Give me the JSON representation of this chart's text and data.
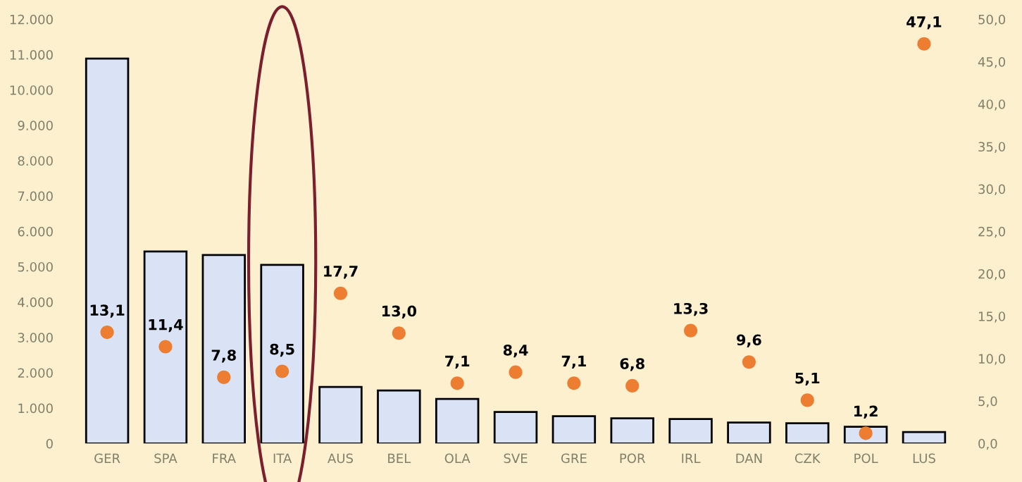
{
  "chart_data": {
    "type": "bar",
    "categories": [
      "GER",
      "SPA",
      "FRA",
      "ITA",
      "AUS",
      "BEL",
      "OLA",
      "SVE",
      "GRE",
      "POR",
      "IRL",
      "DAN",
      "CZK",
      "POL",
      "LUS"
    ],
    "series": [
      {
        "color": "#dae3f5",
        "values": [
          10890,
          5430,
          5330,
          5050,
          1600,
          1500,
          1260,
          890,
          770,
          710,
          690,
          590,
          570,
          470,
          320
        ]
      },
      {
        "type": "scatter",
        "axis": "y2",
        "color": "#ed7d31",
        "values": [
          13.1,
          11.4,
          7.8,
          8.5,
          17.7,
          13.0,
          7.1,
          8.4,
          7.1,
          6.8,
          13.3,
          9.6,
          5.1,
          1.2,
          47.1
        ],
        "value_labels": [
          "13,1",
          "11,4",
          "7,8",
          "8,5",
          "17,7",
          "13,0",
          "7,1",
          "8,4",
          "7,1",
          "6,8",
          "13,3",
          "9,6",
          "5,1",
          "1,2",
          "47,1"
        ]
      }
    ],
    "ylim": [
      0,
      12000
    ],
    "yticks": [
      {
        "value": 0,
        "label": "0"
      },
      {
        "value": 1000,
        "label": "1.000"
      },
      {
        "value": 2000,
        "label": "2.000"
      },
      {
        "value": 3000,
        "label": "3.000"
      },
      {
        "value": 4000,
        "label": "4.000"
      },
      {
        "value": 5000,
        "label": "5.000"
      },
      {
        "value": 6000,
        "label": "6.000"
      },
      {
        "value": 7000,
        "label": "7.000"
      },
      {
        "value": 8000,
        "label": "8.000"
      },
      {
        "value": 9000,
        "label": "9.000"
      },
      {
        "value": 10000,
        "label": "10.000"
      },
      {
        "value": 11000,
        "label": "11.000"
      },
      {
        "value": 12000,
        "label": "12.000"
      }
    ],
    "y2lim": [
      0,
      50
    ],
    "y2ticks": [
      {
        "value": 0,
        "label": "0,0"
      },
      {
        "value": 5,
        "label": "5,0"
      },
      {
        "value": 10,
        "label": "10,0"
      },
      {
        "value": 15,
        "label": "15,0"
      },
      {
        "value": 20,
        "label": "20,0"
      },
      {
        "value": 25,
        "label": "25,0"
      },
      {
        "value": 30,
        "label": "30,0"
      },
      {
        "value": 35,
        "label": "35,0"
      },
      {
        "value": 40,
        "label": "40,0"
      },
      {
        "value": 45,
        "label": "45,0"
      },
      {
        "value": 50,
        "label": "50,0"
      }
    ],
    "marker": "circle",
    "grid": false,
    "legend": false
  }
}
